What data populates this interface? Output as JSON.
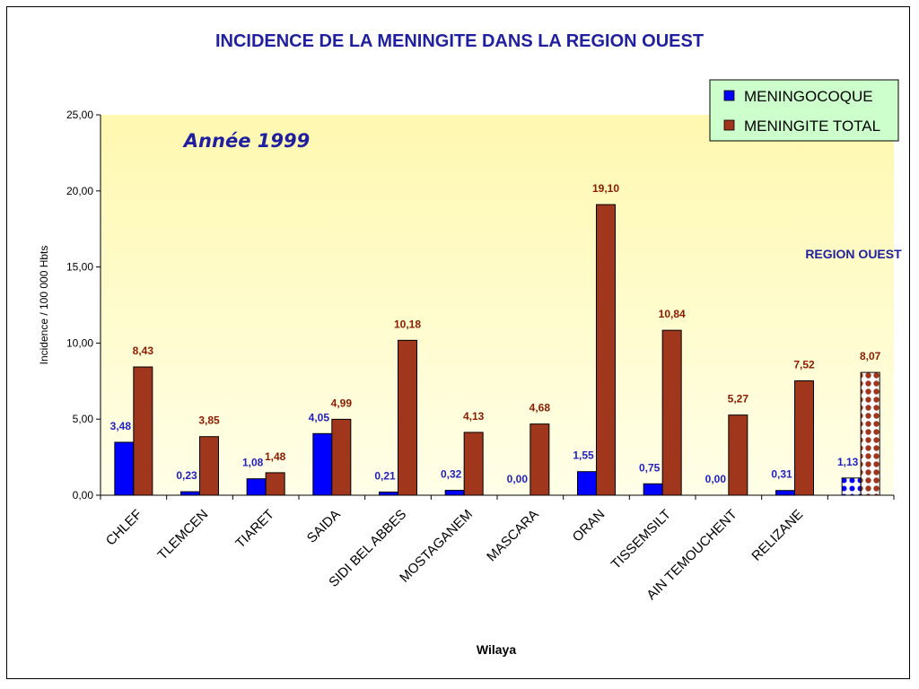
{
  "chart_data": {
    "type": "bar",
    "title": "INCIDENCE DE LA MENINGITE DANS LA REGION OUEST",
    "annotation": "Année 1999",
    "region_label": "REGION OUEST",
    "xlabel": "Wilaya",
    "ylabel": "Incidence / 100 000 Hbts",
    "ylim": [
      0,
      25
    ],
    "yticks": [
      "0,00",
      "5,00",
      "10,00",
      "15,00",
      "20,00",
      "25,00"
    ],
    "categories": [
      "CHLEF",
      "TLEMCEN",
      "TIARET",
      "SAIDA",
      "SIDI BEL ABBES",
      "MOSTAGANEM",
      "MASCARA",
      "ORAN",
      "TISSEMSILT",
      "AIN TEMOUCHENT",
      "RELIZANE",
      ""
    ],
    "series": [
      {
        "name": "MENINGOCOQUE",
        "color": "#0000ff",
        "values": [
          3.48,
          0.23,
          1.08,
          4.05,
          0.21,
          0.32,
          0.0,
          1.55,
          0.75,
          0.0,
          0.31,
          1.13
        ],
        "labels": [
          "3,48",
          "0,23",
          "1,08",
          "4,05",
          "0,21",
          "0,32",
          "0,00",
          "1,55",
          "0,75",
          "0,00",
          "0,31",
          "1,13"
        ]
      },
      {
        "name": "MENINGITE TOTAL",
        "color": "#a0361c",
        "values": [
          8.43,
          3.85,
          1.48,
          4.99,
          10.18,
          4.13,
          4.68,
          19.1,
          10.84,
          5.27,
          7.52,
          8.07
        ],
        "labels": [
          "8,43",
          "3,85",
          "1,48",
          "4,99",
          "10,18",
          "4,13",
          "4,68",
          "19,10",
          "10,84",
          "5,27",
          "7,52",
          "8,07"
        ]
      }
    ],
    "plot_background": "#ffffc8",
    "legend_background": "#ccffcc",
    "legend_position": "top-right",
    "grid": false
  }
}
